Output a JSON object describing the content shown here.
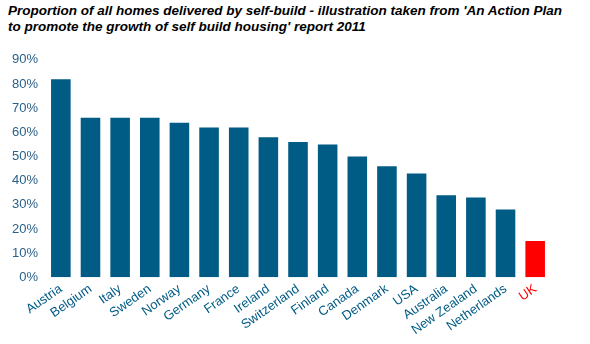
{
  "chart_data": {
    "type": "bar",
    "title": "Proportion of all homes delivered by self-build - illustration taken from 'An Action Plan to promote the growth of self build housing' report 2011",
    "categories": [
      "Austria",
      "Belgium",
      "Italy",
      "Sweden",
      "Norway",
      "Germany",
      "France",
      "Ireland",
      "Switzerland",
      "Finland",
      "Canada",
      "Denmark",
      "USA",
      "Australia",
      "New Zealand",
      "Netherlands",
      "UK"
    ],
    "values": [
      82,
      66,
      66,
      66,
      64,
      62,
      62,
      58,
      56,
      55,
      50,
      46,
      43,
      34,
      33,
      28,
      15
    ],
    "colors": [
      "#005b85",
      "#005b85",
      "#005b85",
      "#005b85",
      "#005b85",
      "#005b85",
      "#005b85",
      "#005b85",
      "#005b85",
      "#005b85",
      "#005b85",
      "#005b85",
      "#005b85",
      "#005b85",
      "#005b85",
      "#005b85",
      "#ff0000"
    ],
    "ylim": [
      0,
      90
    ],
    "yticks": [
      {
        "value": 0,
        "label": "0%"
      },
      {
        "value": 10,
        "label": "10%"
      },
      {
        "value": 20,
        "label": "20%"
      },
      {
        "value": 30,
        "label": "30%"
      },
      {
        "value": 40,
        "label": "40%"
      },
      {
        "value": 50,
        "label": "50%"
      },
      {
        "value": 60,
        "label": "60%"
      },
      {
        "value": 70,
        "label": "70%"
      },
      {
        "value": 80,
        "label": "80%"
      },
      {
        "value": 90,
        "label": "90%"
      }
    ],
    "grid": false
  }
}
